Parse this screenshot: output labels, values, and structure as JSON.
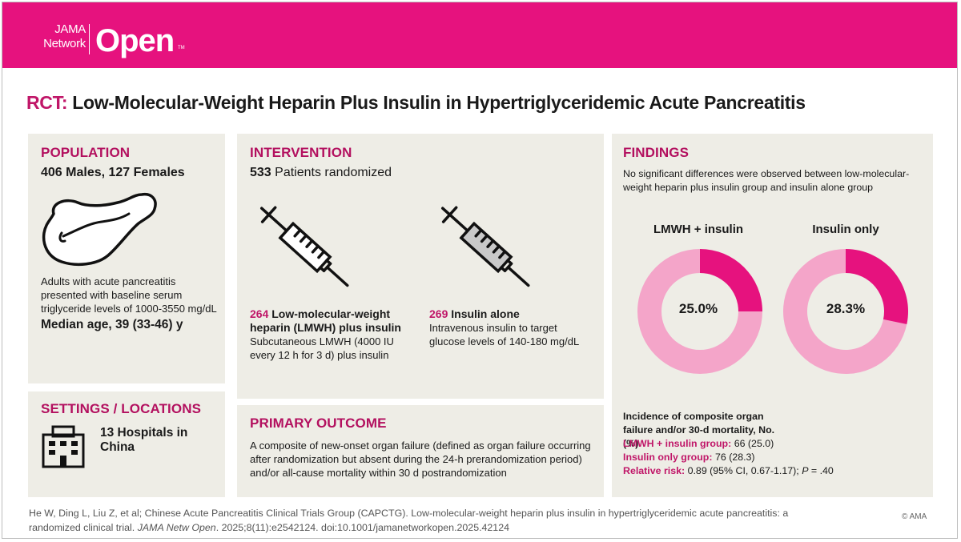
{
  "brand": {
    "line1": "JAMA",
    "line2": "Network",
    "product": "Open",
    "tm": "TM"
  },
  "title": {
    "prefix": "RCT:",
    "text": "Low-Molecular-Weight Heparin Plus Insulin in Hypertriglyceridemic Acute Pancreatitis"
  },
  "population": {
    "heading": "POPULATION",
    "counts": "406 Males, 127 Females",
    "description": "Adults with acute pancreatitis presented with baseline serum triglyceride levels of 1000-3550 mg/dL",
    "median_age": "Median age, 39 (33-46) y"
  },
  "settings": {
    "heading": "SETTINGS / LOCATIONS",
    "text": "13 Hospitals in China"
  },
  "intervention": {
    "heading": "INTERVENTION",
    "randomized_num": "533",
    "randomized_text": "Patients randomized",
    "arm1": {
      "num": "264",
      "title": "Low-molecular-weight heparin (LMWH) plus insulin",
      "desc": "Subcutaneous LMWH (4000 IU every 12 h for 3 d) plus insulin"
    },
    "arm2": {
      "num": "269",
      "title": "Insulin alone",
      "desc": "Intravenous insulin to target glucose levels of 140-180 mg/dL"
    }
  },
  "primary_outcome": {
    "heading": "PRIMARY OUTCOME",
    "text": "A composite of new-onset organ failure (defined as organ failure occurring after randomization but absent during the 24-h prerandomization period) and/or all-cause mortality within 30 d postrandomization"
  },
  "findings": {
    "heading": "FINDINGS",
    "summary": "No significant differences were observed between low-molecular-weight heparin plus insulin group and insulin alone group",
    "incidence_heading": "Incidence of composite organ failure and/or 30-d mortality, No. (%)",
    "lmwh_label": "LMWH + insulin group:",
    "lmwh_value": "66 (25.0)",
    "insulin_label": "Insulin only group:",
    "insulin_value": "76 (28.3)",
    "rr_label": "Relative risk:",
    "rr_value_pre": "0.89 (95% CI, 0.67-1.17);",
    "rr_p": "P",
    "rr_value_post": "= .40"
  },
  "chart_data": {
    "type": "pie",
    "charts": [
      {
        "label": "LMWH + insulin",
        "value_label": "25.0%",
        "fraction": 0.25,
        "colors": [
          "#e6127e",
          "#f4a5c9"
        ]
      },
      {
        "label": "Insulin only",
        "value_label": "28.3%",
        "fraction": 0.283,
        "colors": [
          "#e6127e",
          "#f4a5c9"
        ]
      }
    ]
  },
  "citation": {
    "authors": "He W, Ding L, Liu Z, et al; Chinese Acute Pancreatitis Clinical Trials Group (CAPCTG). Low-molecular-weight heparin plus insulin in hypertriglyceridemic acute pancreatitis: a randomized clinical trial.",
    "journal": "JAMA Netw Open",
    "details": ". 2025;8(11):e2542124. doi:10.1001/jamanetworkopen.2025.42124",
    "copyright": "© AMA"
  },
  "colors": {
    "magenta": "#e6127e",
    "heading": "#b3105f",
    "panel": "#eeede6",
    "pink_light": "#f4a5c9"
  }
}
